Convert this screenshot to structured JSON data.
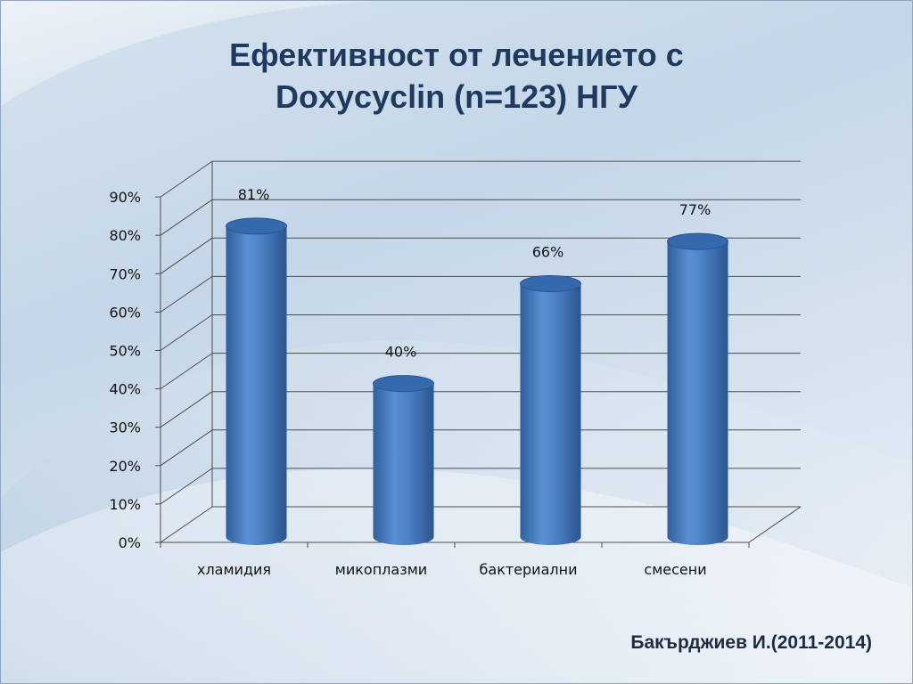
{
  "title_line1": "Ефективност от лечението с",
  "title_line2": "Doxycyclin (n=123) НГУ",
  "footer": "Бакърджиев И.(2011-2014)",
  "colors": {
    "bar": "#4a7ec4",
    "bar_dark": "#2c5a9a",
    "bar_top": "#3569ad",
    "grid": "#4d4d4d",
    "title": "#1f3a5f"
  },
  "chart_data": {
    "type": "bar",
    "title": "Ефективност от лечението с Doxycyclin (n=123) НГУ",
    "categories": [
      "хламидия",
      "микоплазми",
      "бактериални",
      "смесени"
    ],
    "values": [
      81,
      40,
      66,
      77
    ],
    "value_labels": [
      "81%",
      "40%",
      "66%",
      "77%"
    ],
    "yticks": [
      "0%",
      "10%",
      "20%",
      "30%",
      "40%",
      "50%",
      "60%",
      "70%",
      "80%",
      "90%"
    ],
    "ylim": [
      0,
      90
    ],
    "grid": true,
    "style": "3d-cylinder"
  }
}
